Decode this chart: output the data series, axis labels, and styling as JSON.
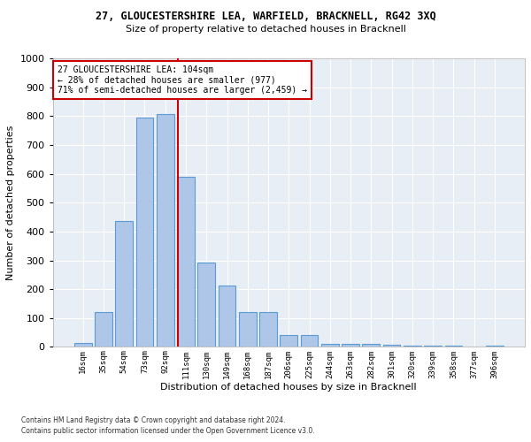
{
  "title_line1": "27, GLOUCESTERSHIRE LEA, WARFIELD, BRACKNELL, RG42 3XQ",
  "title_line2": "Size of property relative to detached houses in Bracknell",
  "xlabel": "Distribution of detached houses by size in Bracknell",
  "ylabel": "Number of detached properties",
  "categories": [
    "16sqm",
    "35sqm",
    "54sqm",
    "73sqm",
    "92sqm",
    "111sqm",
    "130sqm",
    "149sqm",
    "168sqm",
    "187sqm",
    "206sqm",
    "225sqm",
    "244sqm",
    "263sqm",
    "282sqm",
    "301sqm",
    "320sqm",
    "339sqm",
    "358sqm",
    "377sqm",
    "396sqm"
  ],
  "values": [
    15,
    120,
    435,
    795,
    808,
    590,
    292,
    213,
    120,
    120,
    40,
    40,
    10,
    10,
    10,
    8,
    5,
    3,
    3,
    0,
    5
  ],
  "bar_color": "#aec6e8",
  "bar_edge_color": "#5b9bd5",
  "property_line_x": 4.5,
  "annotation_line1": "27 GLOUCESTERSHIRE LEA: 104sqm",
  "annotation_line2": "← 28% of detached houses are smaller (977)",
  "annotation_line3": "71% of semi-detached houses are larger (2,459) →",
  "annotation_box_color": "#ffffff",
  "annotation_box_edge_color": "#cc0000",
  "property_line_color": "#cc0000",
  "ylim": [
    0,
    1000
  ],
  "yticks": [
    0,
    100,
    200,
    300,
    400,
    500,
    600,
    700,
    800,
    900,
    1000
  ],
  "background_color": "#e8eef5",
  "grid_color": "#ffffff",
  "footer_line1": "Contains HM Land Registry data © Crown copyright and database right 2024.",
  "footer_line2": "Contains public sector information licensed under the Open Government Licence v3.0."
}
